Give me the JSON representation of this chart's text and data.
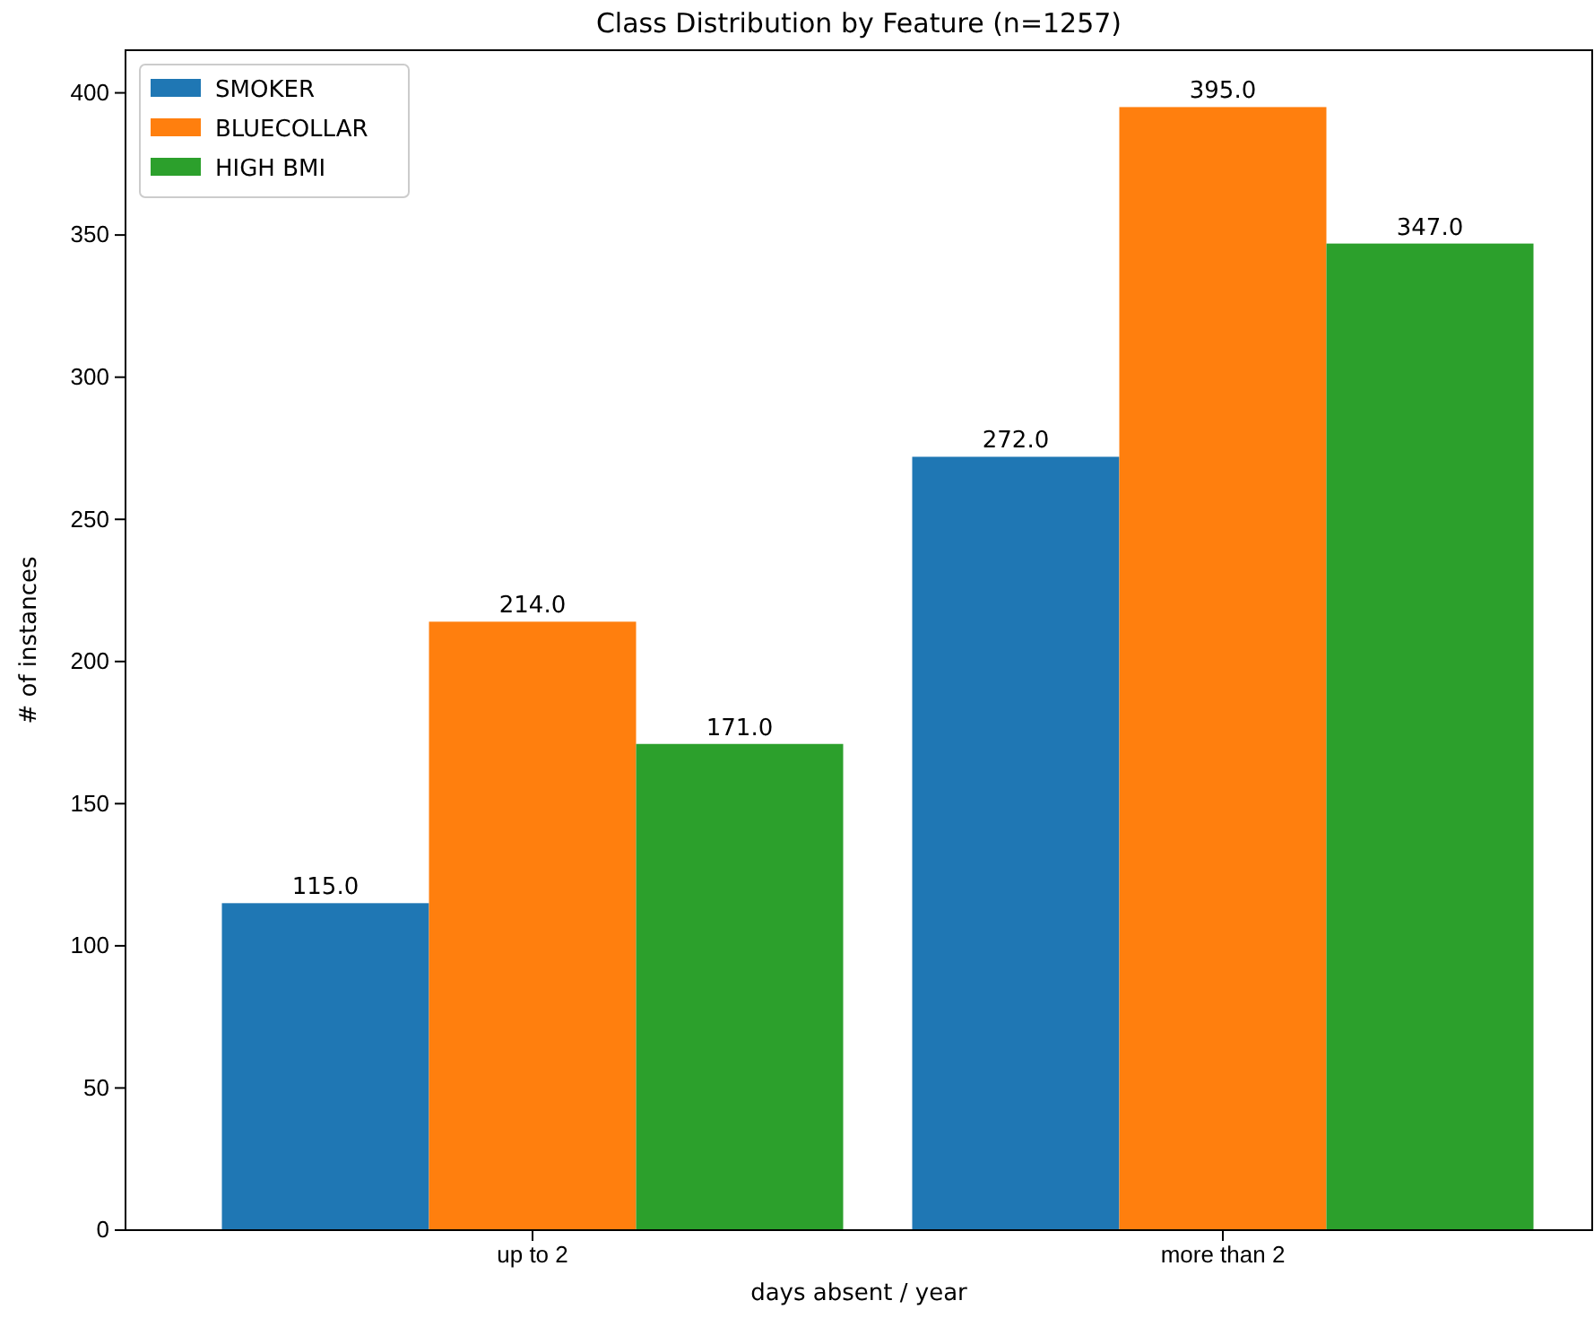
{
  "chart_data": {
    "type": "bar",
    "title": "Class Distribution by Feature (n=1257)",
    "xlabel": "days absent / year",
    "ylabel": "# of instances",
    "categories": [
      "up to 2",
      "more than 2"
    ],
    "series": [
      {
        "name": "SMOKER",
        "color": "#1f77b4",
        "values": [
          115,
          272
        ],
        "value_labels": [
          "115.0",
          "272.0"
        ]
      },
      {
        "name": "BLUECOLLAR",
        "color": "#ff7f0e",
        "values": [
          214,
          395
        ],
        "value_labels": [
          "214.0",
          "395.0"
        ]
      },
      {
        "name": "HIGH BMI",
        "color": "#2ca02c",
        "values": [
          171,
          347
        ],
        "value_labels": [
          "171.0",
          "347.0"
        ]
      }
    ],
    "ylim": [
      0,
      415
    ],
    "yticks": [
      0,
      50,
      100,
      150,
      200,
      250,
      300,
      350,
      400
    ],
    "legend": "top left"
  }
}
